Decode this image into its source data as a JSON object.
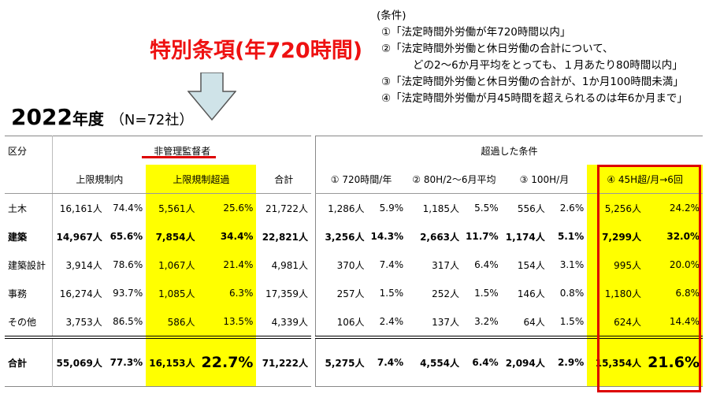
{
  "headline": "特別条項(年720時間)",
  "year_num": "2022",
  "year_suffix": "年度",
  "year_n": "（N=72社）",
  "conditions": {
    "title": "(条件)",
    "items": [
      "①「法定時間外労働が年720時間以内」",
      "②「法定時間外労働と休日労働の合計について、",
      "どの2～6か月平均をとっても、１月あたり80時間以内」",
      "③「法定時間外労働と休日労働の合計が、1か月100時間未満」",
      "④「法定時間外労働が月45時間を超えられるのは年6か月まで」"
    ]
  },
  "colors": {
    "highlight": "#ffff00",
    "accent_red": "#dd0000",
    "arrow_fill": "#cfe3e8"
  },
  "icons": {
    "down_arrow": "down-arrow-icon"
  },
  "left_table": {
    "h_category": "区分",
    "h_group": "非管理監督者",
    "h_within": "上限規制内",
    "h_over": "上限規制超過",
    "h_total": "合計",
    "rows": [
      {
        "name": "土木",
        "bold": false,
        "within": "16,161人",
        "within_pct": "74.4%",
        "over": "5,561人",
        "over_pct": "25.6%",
        "total": "21,722人"
      },
      {
        "name": "建築",
        "bold": true,
        "within": "14,967人",
        "within_pct": "65.6%",
        "over": "7,854人",
        "over_pct": "34.4%",
        "total": "22,821人"
      },
      {
        "name": "建築設計",
        "bold": false,
        "within": "3,914人",
        "within_pct": "78.6%",
        "over": "1,067人",
        "over_pct": "21.4%",
        "total": "4,981人"
      },
      {
        "name": "事務",
        "bold": false,
        "within": "16,274人",
        "within_pct": "93.7%",
        "over": "1,085人",
        "over_pct": "6.3%",
        "total": "17,359人"
      },
      {
        "name": "その他",
        "bold": false,
        "within": "3,753人",
        "within_pct": "86.5%",
        "over": "586人",
        "over_pct": "13.5%",
        "total": "4,339人"
      }
    ],
    "total": {
      "name": "合計",
      "within": "55,069人",
      "within_pct": "77.3%",
      "over": "16,153人",
      "over_pct": "22.7%",
      "total": "71,222人"
    }
  },
  "right_table": {
    "h_group": "超過した条件",
    "h_c1": "① 720時間/年",
    "h_c2": "② 80H/2～6月平均",
    "h_c3": "③ 100H/月",
    "h_c4": "④ 45H超/月→6回",
    "rows": [
      {
        "bold": false,
        "c1": "1,286人",
        "c1p": "5.9%",
        "c2": "1,185人",
        "c2p": "5.5%",
        "c3": "556人",
        "c3p": "2.6%",
        "c4": "5,256人",
        "c4p": "24.2%"
      },
      {
        "bold": true,
        "c1": "3,256人",
        "c1p": "14.3%",
        "c2": "2,663人",
        "c2p": "11.7%",
        "c3": "1,174人",
        "c3p": "5.1%",
        "c4": "7,299人",
        "c4p": "32.0%"
      },
      {
        "bold": false,
        "c1": "370人",
        "c1p": "7.4%",
        "c2": "317人",
        "c2p": "6.4%",
        "c3": "154人",
        "c3p": "3.1%",
        "c4": "995人",
        "c4p": "20.0%"
      },
      {
        "bold": false,
        "c1": "257人",
        "c1p": "1.5%",
        "c2": "252人",
        "c2p": "1.5%",
        "c3": "146人",
        "c3p": "0.8%",
        "c4": "1,180人",
        "c4p": "6.8%"
      },
      {
        "bold": false,
        "c1": "106人",
        "c1p": "2.4%",
        "c2": "137人",
        "c2p": "3.2%",
        "c3": "64人",
        "c3p": "1.5%",
        "c4": "624人",
        "c4p": "14.4%"
      }
    ],
    "total": {
      "c1": "5,275人",
      "c1p": "7.4%",
      "c2": "4,554人",
      "c2p": "6.4%",
      "c3": "2,094人",
      "c3p": "2.9%",
      "c4": "15,354人",
      "c4p": "21.6%"
    }
  }
}
